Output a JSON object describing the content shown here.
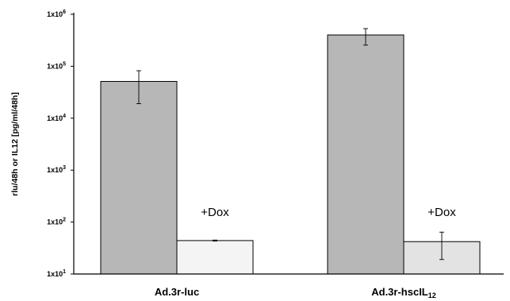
{
  "chart_data": {
    "type": "bar",
    "title": "",
    "ylabel": "rlu/48h or IL12 [pg/ml/48h]",
    "xlabel": "",
    "yscale": "log",
    "ylim": [
      10,
      1000000
    ],
    "yticks": [
      {
        "value": 10,
        "base": "1x10",
        "exp": "1"
      },
      {
        "value": 100,
        "base": "1x10",
        "exp": "2"
      },
      {
        "value": 1000,
        "base": "1x10",
        "exp": "3"
      },
      {
        "value": 10000,
        "base": "1x10",
        "exp": "4"
      },
      {
        "value": 100000,
        "base": "1x10",
        "exp": "5"
      },
      {
        "value": 1000000,
        "base": "1x10",
        "exp": "6"
      }
    ],
    "categories": [
      {
        "label": "Ad.3r-luc",
        "sub": ""
      },
      {
        "label": "Ad.3r-hscIL",
        "sub": "12"
      }
    ],
    "series": [
      {
        "values": [
          51000,
          400000
        ],
        "err_low": [
          19000,
          255000
        ],
        "err_high": [
          82000,
          530000
        ],
        "color": "#b7b7b7"
      },
      {
        "values": [
          44,
          42
        ],
        "err_low": [
          43,
          19
        ],
        "err_high": [
          45,
          64
        ],
        "color": "#f4f4f4",
        "annotation": "+Dox"
      }
    ],
    "colors": {
      "bar_dark": "#b7b7b7",
      "bar_light_1": "#f4f4f4",
      "bar_light_2": "#e3e3e3",
      "axis": "#000000"
    }
  }
}
